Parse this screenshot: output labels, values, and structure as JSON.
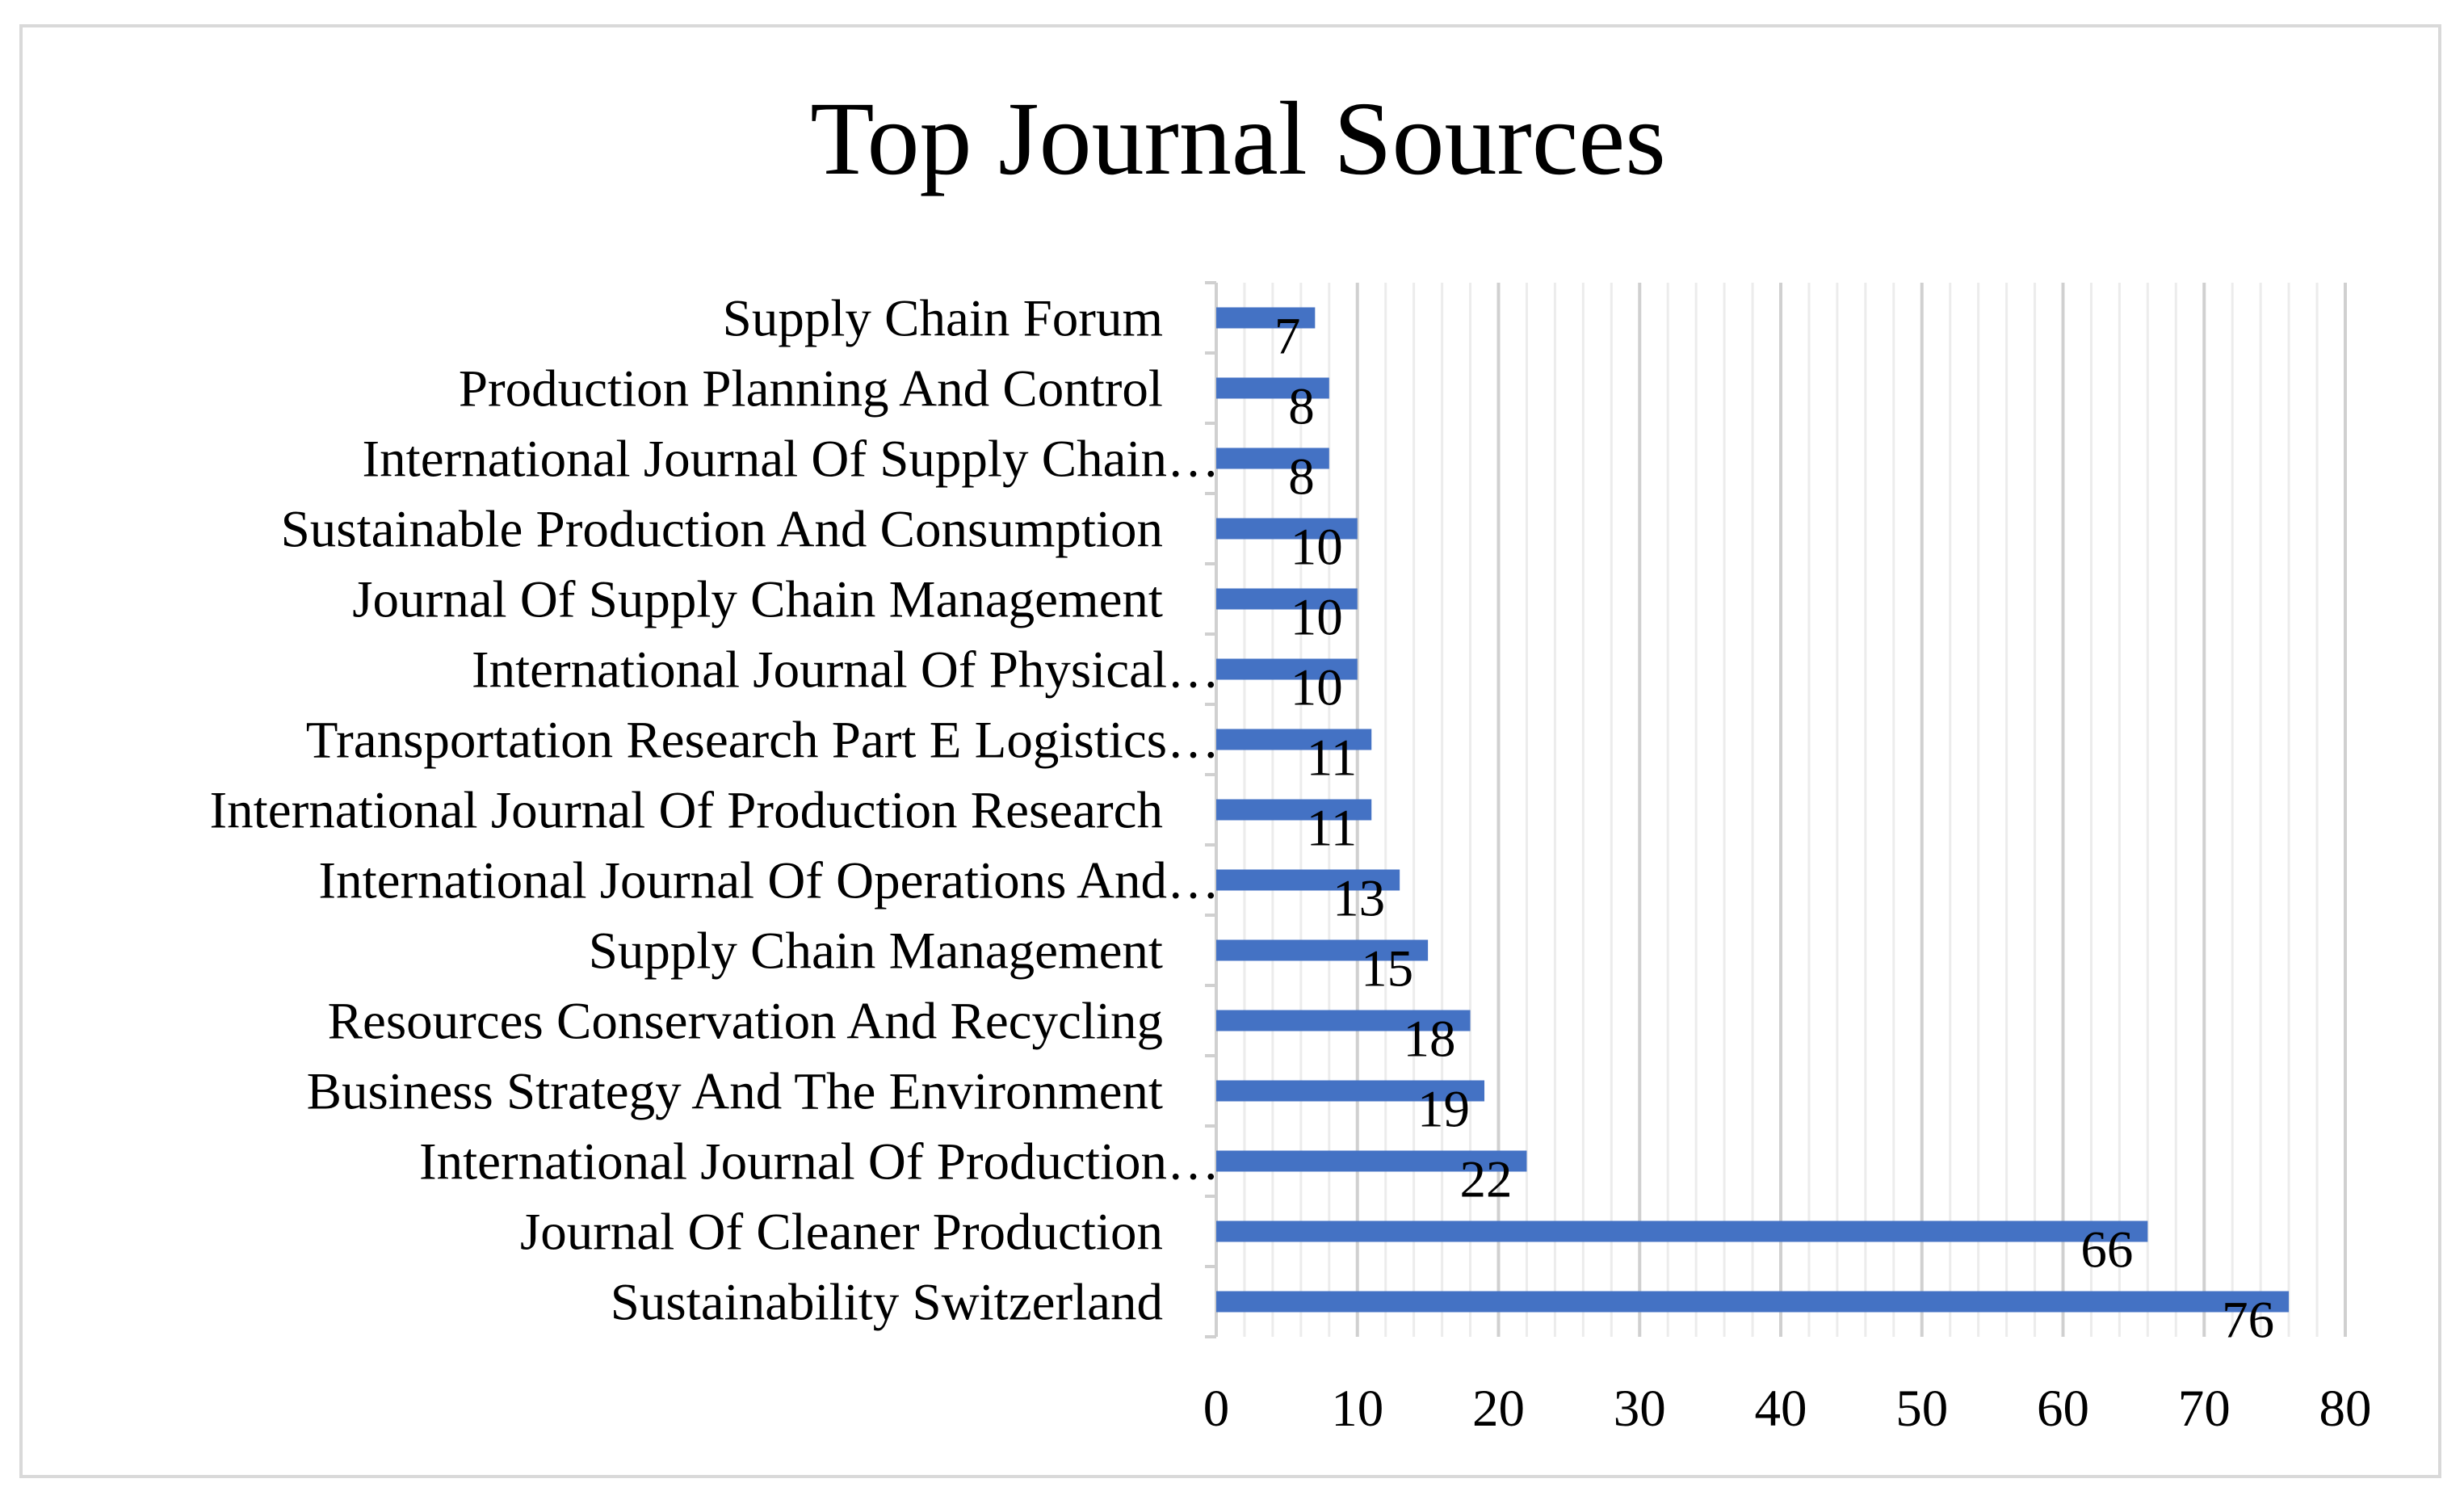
{
  "chart_data": {
    "type": "bar",
    "orientation": "horizontal",
    "title": "Top Journal Sources",
    "xlabel": "",
    "ylabel": "",
    "xlim": [
      0,
      80
    ],
    "x_ticks": [
      0,
      10,
      20,
      30,
      40,
      50,
      60,
      70,
      80
    ],
    "grid": true,
    "legend": "none",
    "bar_color": "#4472C4",
    "categories": [
      "Supply Chain Forum",
      "Production Planning And Control",
      "International Journal Of Supply Chain…",
      "Sustainable Production And Consumption",
      "Journal Of Supply Chain Management",
      "International Journal Of Physical…",
      "Transportation Research Part E Logistics…",
      "International Journal Of Production Research",
      "International Journal Of Operations And…",
      "Supply Chain Management",
      "Resources Conservation And Recycling",
      "Business Strategy And The Environment",
      "International Journal Of Production…",
      "Journal Of Cleaner Production",
      "Sustainability Switzerland"
    ],
    "values": [
      7,
      8,
      8,
      10,
      10,
      10,
      11,
      11,
      13,
      15,
      18,
      19,
      22,
      66,
      76
    ]
  }
}
